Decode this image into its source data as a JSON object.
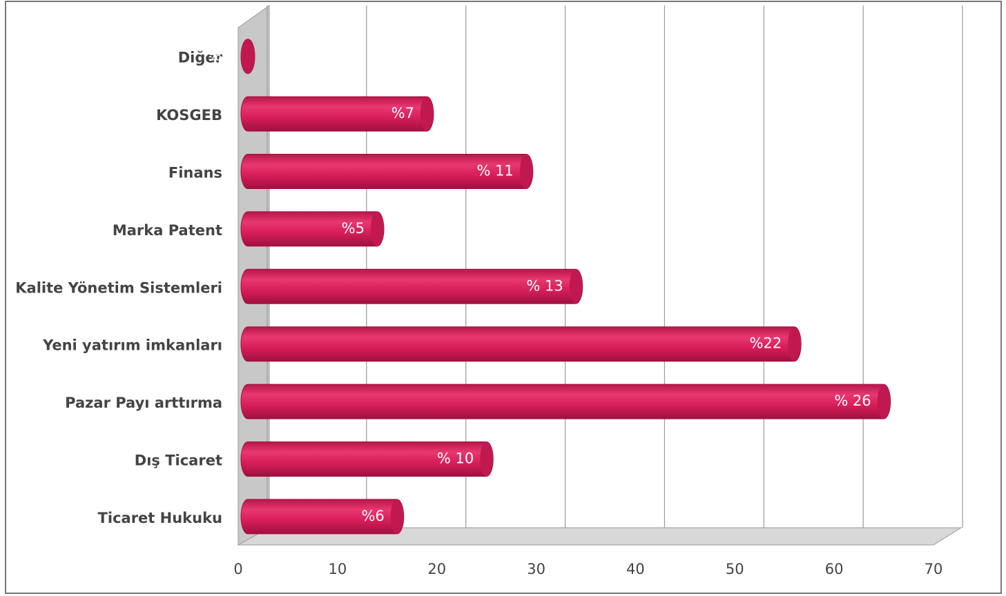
{
  "chart_data": {
    "type": "bar3d",
    "orientation": "horizontal",
    "categories": [
      "Diğer",
      "KOSGEB",
      "Finans",
      "Marka Patent",
      "Kalite Yönetim Sistemleri",
      "Yeni yatırım imkanları",
      "Pazar Payı arttırma",
      "Dış Ticaret",
      "Ticaret Hukuku"
    ],
    "values": [
      0,
      18,
      28,
      13,
      33,
      55,
      64,
      24,
      15
    ],
    "annotations": [
      "% 0",
      "%7",
      "% 11",
      "%5",
      "% 13",
      "%22",
      "% 26",
      "% 10",
      "%6"
    ],
    "color": "#d81e5b",
    "xlim": [
      0,
      70
    ],
    "xticks": [
      0,
      10,
      20,
      30,
      40,
      50,
      60,
      70
    ],
    "grid": true
  }
}
